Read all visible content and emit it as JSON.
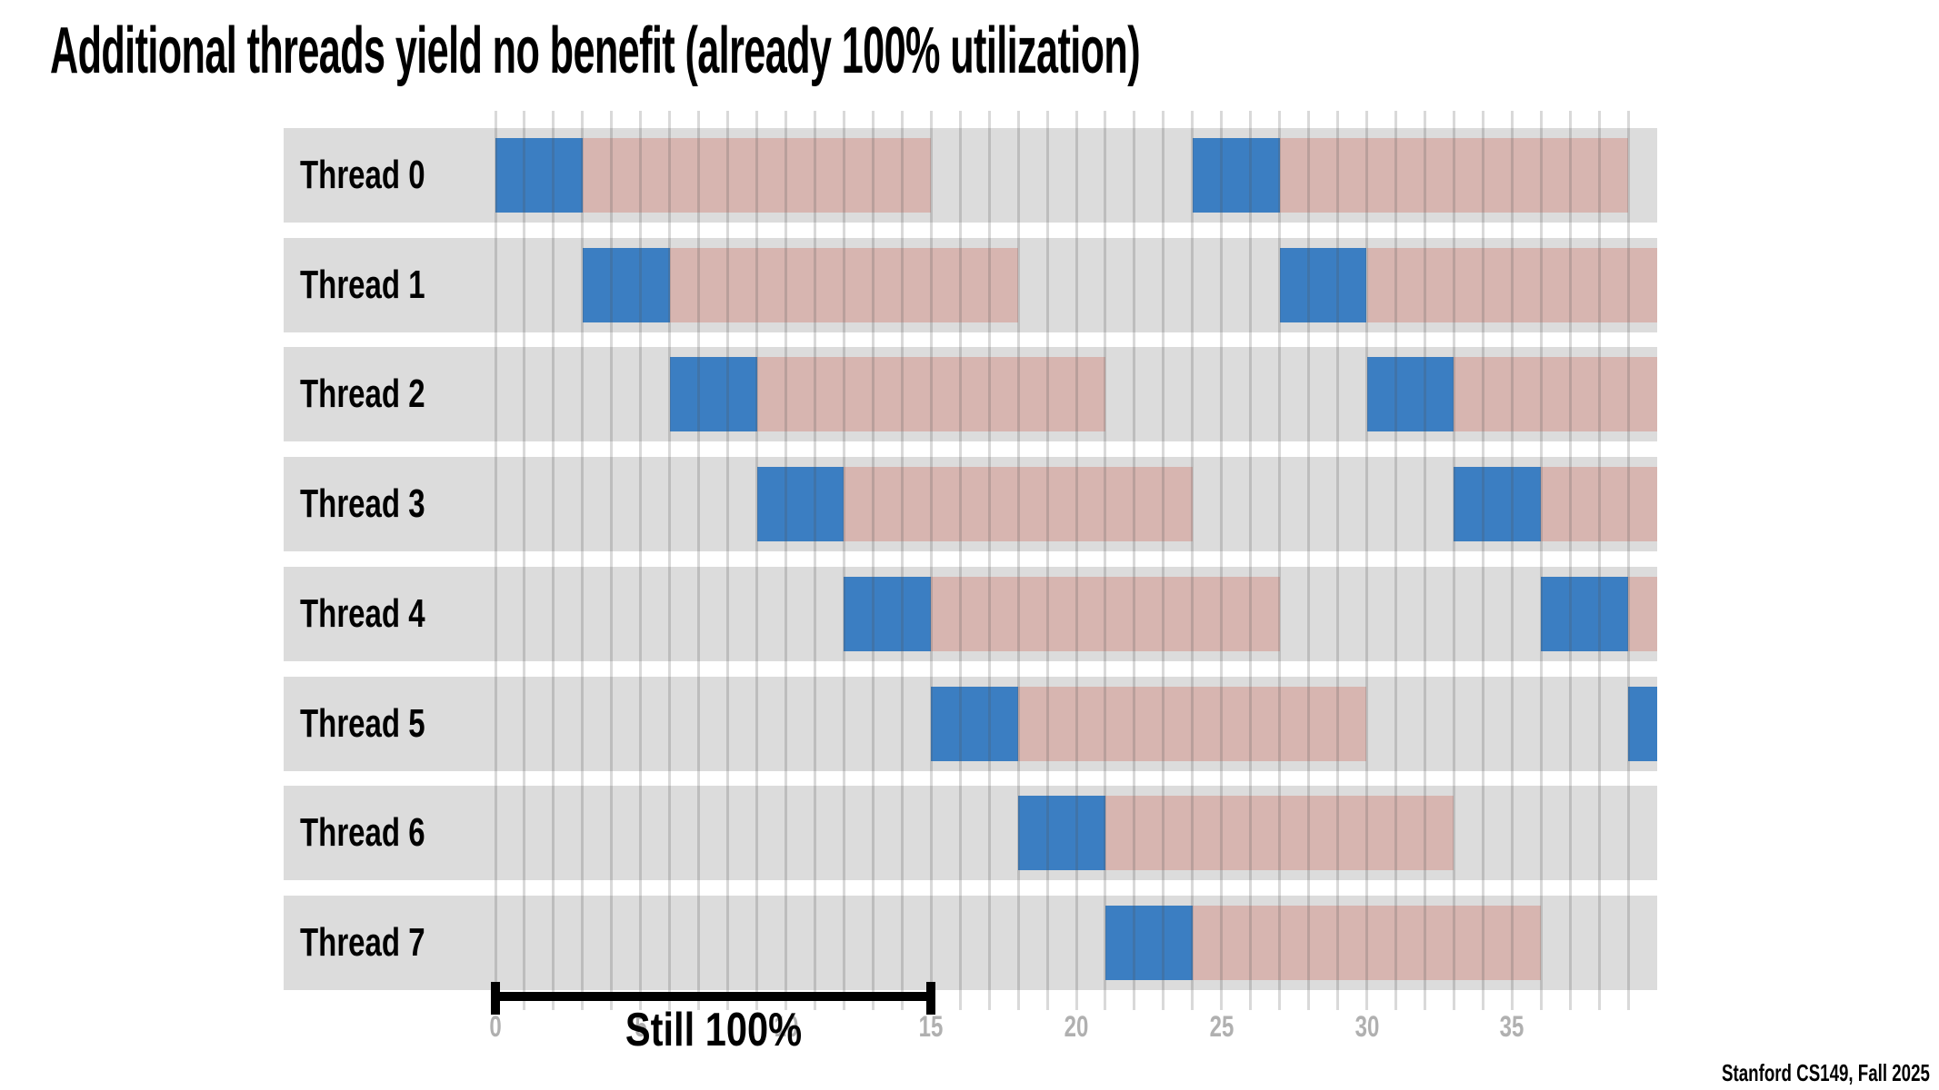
{
  "title": "Additional threads yield no benefit (already 100% utilization)",
  "footer": "Stanford CS149, Fall 2025",
  "chart_data": {
    "type": "gantt",
    "title": "Additional threads yield no benefit (already 100% utilization)",
    "x_axis": {
      "min": 0,
      "max": 40,
      "tick_labels": [
        0,
        5,
        10,
        15,
        20,
        25,
        30,
        35
      ],
      "minor_tick_interval": 1,
      "grid": true
    },
    "annotation": {
      "label": "Still 100%",
      "start": 0,
      "end": 15
    },
    "legend_semantics": {
      "compute": "thread running (blue)",
      "wait": "thread stalled/waiting (pink)"
    },
    "colors": {
      "compute": "#3b7ec2",
      "wait": "#d7b5b0",
      "row_bg": "#dcdcdc",
      "grid": "rgba(80,80,80,0.22)",
      "tick_label": "#b0b0b0",
      "bracket": "#000000"
    },
    "rows": [
      {
        "label": "Thread 0",
        "segments": [
          {
            "start": 0,
            "end": 3,
            "kind": "compute"
          },
          {
            "start": 3,
            "end": 15,
            "kind": "wait"
          },
          {
            "start": 24,
            "end": 27,
            "kind": "compute"
          },
          {
            "start": 27,
            "end": 39,
            "kind": "wait"
          }
        ]
      },
      {
        "label": "Thread 1",
        "segments": [
          {
            "start": 3,
            "end": 6,
            "kind": "compute"
          },
          {
            "start": 6,
            "end": 18,
            "kind": "wait"
          },
          {
            "start": 27,
            "end": 30,
            "kind": "compute"
          },
          {
            "start": 30,
            "end": 40,
            "kind": "wait"
          }
        ]
      },
      {
        "label": "Thread 2",
        "segments": [
          {
            "start": 6,
            "end": 9,
            "kind": "compute"
          },
          {
            "start": 9,
            "end": 21,
            "kind": "wait"
          },
          {
            "start": 30,
            "end": 33,
            "kind": "compute"
          },
          {
            "start": 33,
            "end": 40,
            "kind": "wait"
          }
        ]
      },
      {
        "label": "Thread 3",
        "segments": [
          {
            "start": 9,
            "end": 12,
            "kind": "compute"
          },
          {
            "start": 12,
            "end": 24,
            "kind": "wait"
          },
          {
            "start": 33,
            "end": 36,
            "kind": "compute"
          },
          {
            "start": 36,
            "end": 40,
            "kind": "wait"
          }
        ]
      },
      {
        "label": "Thread 4",
        "segments": [
          {
            "start": 12,
            "end": 15,
            "kind": "compute"
          },
          {
            "start": 15,
            "end": 27,
            "kind": "wait"
          },
          {
            "start": 36,
            "end": 39,
            "kind": "compute"
          },
          {
            "start": 39,
            "end": 40,
            "kind": "wait"
          }
        ]
      },
      {
        "label": "Thread 5",
        "segments": [
          {
            "start": 15,
            "end": 18,
            "kind": "compute"
          },
          {
            "start": 18,
            "end": 30,
            "kind": "wait"
          },
          {
            "start": 39,
            "end": 40,
            "kind": "compute"
          }
        ]
      },
      {
        "label": "Thread 6",
        "segments": [
          {
            "start": 18,
            "end": 21,
            "kind": "compute"
          },
          {
            "start": 21,
            "end": 33,
            "kind": "wait"
          }
        ]
      },
      {
        "label": "Thread 7",
        "segments": [
          {
            "start": 21,
            "end": 24,
            "kind": "compute"
          },
          {
            "start": 24,
            "end": 36,
            "kind": "wait"
          }
        ]
      }
    ]
  }
}
